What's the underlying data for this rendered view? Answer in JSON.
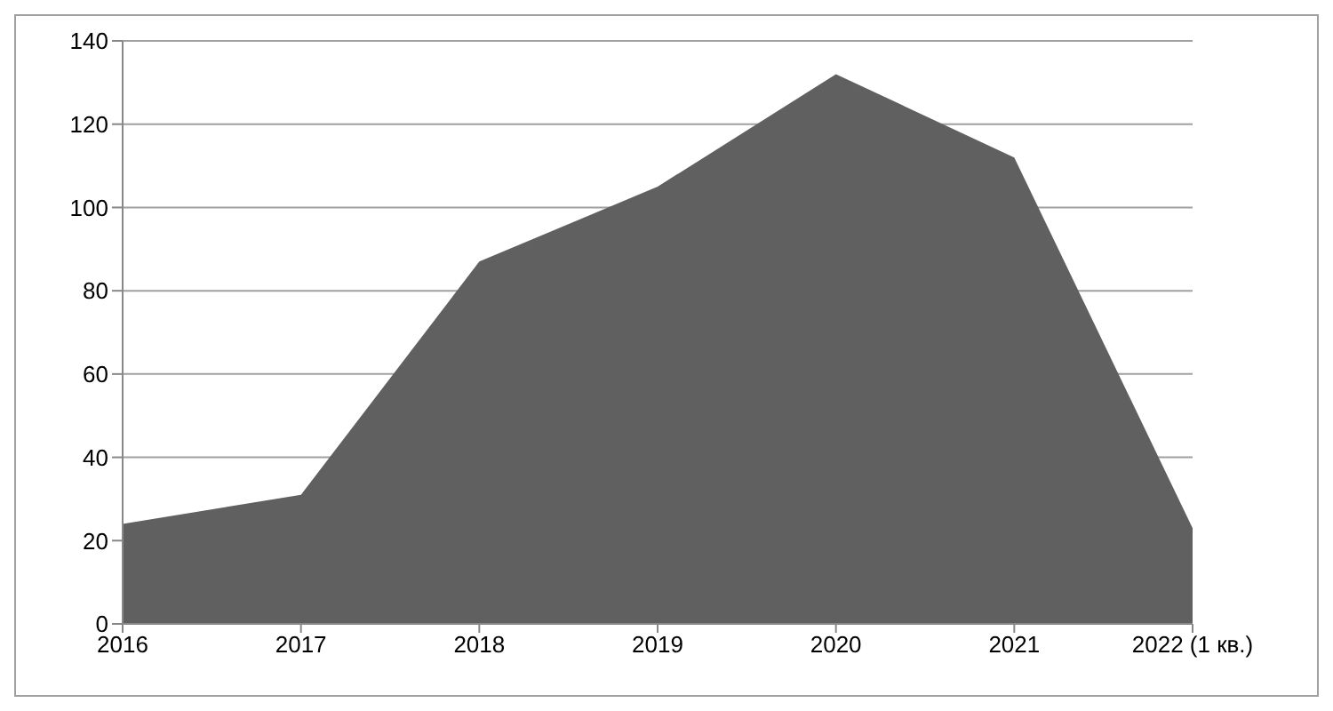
{
  "chart_data": {
    "type": "area",
    "categories": [
      "2016",
      "2017",
      "2018",
      "2019",
      "2020",
      "2021",
      "2022 (1 кв.)"
    ],
    "values": [
      24,
      31,
      87,
      105,
      132,
      112,
      23
    ],
    "color": "#606060",
    "ylim": [
      0,
      140
    ],
    "yticks": [
      0,
      20,
      40,
      60,
      80,
      100,
      120,
      140
    ],
    "grid": "y"
  }
}
